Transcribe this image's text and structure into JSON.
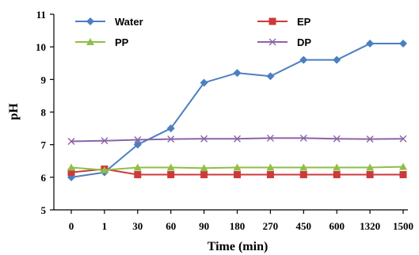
{
  "chart_data": {
    "type": "line",
    "title": "",
    "xlabel": "Time (min)",
    "ylabel": "pH",
    "categories": [
      "0",
      "1",
      "30",
      "60",
      "90",
      "180",
      "270",
      "450",
      "600",
      "1320",
      "1500"
    ],
    "ylim": [
      5,
      11
    ],
    "yticks": [
      "5",
      "6",
      "7",
      "8",
      "9",
      "10",
      "11"
    ],
    "grid": false,
    "legend": "top-inside, two columns",
    "series": [
      {
        "name": "Water",
        "color": "#4a7fc1",
        "marker": "diamond",
        "values": [
          6.0,
          6.15,
          7.0,
          7.5,
          8.9,
          9.2,
          9.1,
          9.6,
          9.6,
          10.1,
          10.1
        ]
      },
      {
        "name": "EP",
        "color": "#cc3a3a",
        "marker": "square",
        "values": [
          6.15,
          6.25,
          6.08,
          6.08,
          6.08,
          6.08,
          6.08,
          6.08,
          6.08,
          6.08,
          6.08
        ]
      },
      {
        "name": "PP",
        "color": "#8fbf45",
        "marker": "triangle",
        "values": [
          6.3,
          6.22,
          6.3,
          6.3,
          6.28,
          6.3,
          6.3,
          6.3,
          6.3,
          6.3,
          6.32
        ]
      },
      {
        "name": "DP",
        "color": "#8a64a8",
        "marker": "x",
        "values": [
          7.1,
          7.12,
          7.15,
          7.17,
          7.18,
          7.18,
          7.2,
          7.2,
          7.18,
          7.17,
          7.18
        ]
      }
    ]
  }
}
